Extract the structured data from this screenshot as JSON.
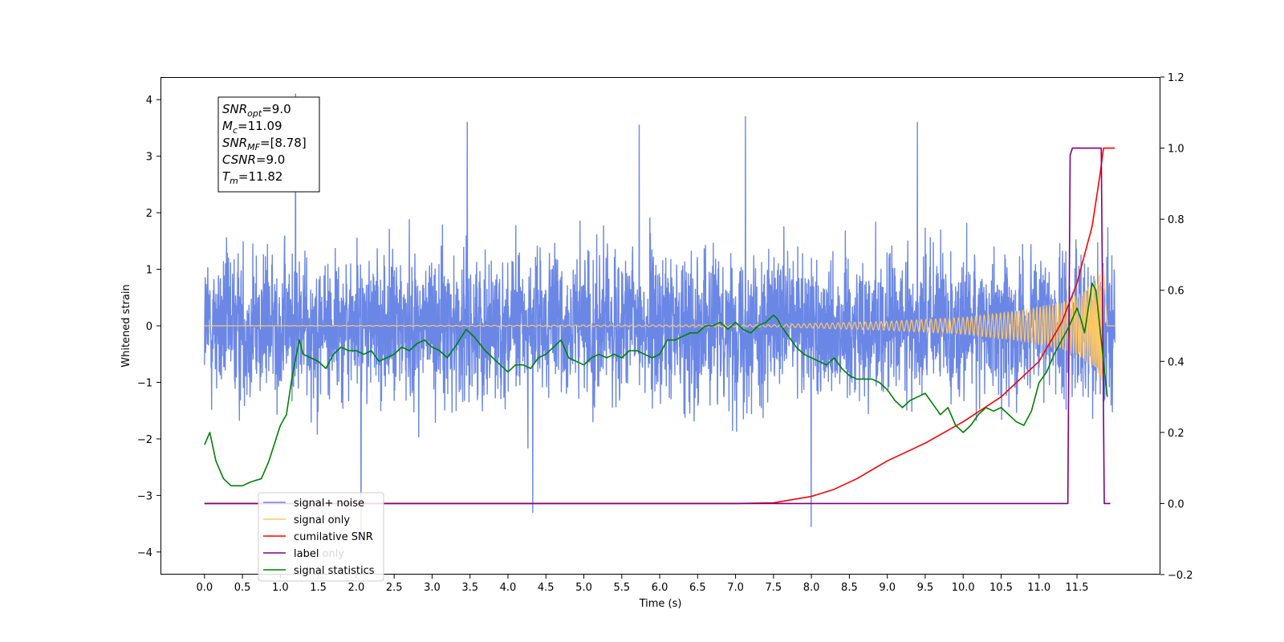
{
  "chart_data": {
    "type": "line",
    "xlabel": "Time (s)",
    "ylabel": "Whitened strain",
    "xlim": [
      -0.58,
      12.6
    ],
    "ylim": [
      -4.4,
      4.4
    ],
    "y2lim": [
      -0.2,
      1.2
    ],
    "x_ticks": [
      0.0,
      0.5,
      1.0,
      1.5,
      2.0,
      2.5,
      3.0,
      3.5,
      4.0,
      4.5,
      5.0,
      5.5,
      6.0,
      6.5,
      7.0,
      7.5,
      8.0,
      8.5,
      9.0,
      9.5,
      10.0,
      10.5,
      11.0,
      11.5
    ],
    "x_tick_labels": [
      "0.0",
      "0.5",
      "1.0",
      "1.5",
      "2.0",
      "2.5",
      "3.0",
      "3.5",
      "4.0",
      "4.5",
      "5.0",
      "5.5",
      "6.0",
      "6.5",
      "7.0",
      "7.5",
      "8.0",
      "8.5",
      "9.0",
      "9.5",
      "10.0",
      "10.5",
      "11.0",
      "11.5"
    ],
    "y_ticks": [
      -4,
      -3,
      -2,
      -1,
      0,
      1,
      2,
      3,
      4
    ],
    "y_tick_labels": [
      "−4",
      "−3",
      "−2",
      "−1",
      "0",
      "1",
      "2",
      "3",
      "4"
    ],
    "y2_ticks": [
      -0.2,
      0.0,
      0.2,
      0.4,
      0.6,
      0.8,
      1.0,
      1.2
    ],
    "y2_tick_labels": [
      "−0.2",
      "0.0",
      "0.2",
      "0.4",
      "0.6",
      "0.8",
      "1.0",
      "1.2"
    ],
    "grid": false,
    "legend_position": "lower-left",
    "info_box": [
      {
        "base": "SNR",
        "sub": "opt",
        "rest": "=9.0"
      },
      {
        "base": "M",
        "sub": "c",
        "rest": "=11.09"
      },
      {
        "base": "SNR",
        "sub": "MF",
        "rest": "=[8.78]"
      },
      {
        "base": "CSNR",
        "sub": "",
        "rest": "=9.0"
      },
      {
        "base": "T",
        "sub": "m",
        "rest": "=11.82"
      }
    ],
    "legend": [
      {
        "label": "signal+ noise",
        "color": "#6b87e6"
      },
      {
        "label": "signal only",
        "color": "#ffc766"
      },
      {
        "label": "cumilative SNR",
        "color": "#ff0000"
      },
      {
        "label": "label",
        "color": "#800080"
      },
      {
        "label": "signal statistics",
        "color": "#008000"
      }
    ],
    "legend_ghost_text": "label only",
    "series": [
      {
        "name": "signal+ noise",
        "axis": "left",
        "color": "#6b87e6",
        "kind": "noise",
        "x_range": [
          0.0,
          12.0
        ],
        "envelope": 1.9,
        "extreme_peaks": [
          4.1,
          3.7,
          3.6,
          3.6,
          3.55,
          -3.85,
          -3.55,
          -3.3
        ]
      },
      {
        "name": "signal only",
        "axis": "left",
        "color": "#ffc766",
        "kind": "chirp",
        "amplitude": {
          "x": [
            0.0,
            7.5,
            9.0,
            10.0,
            10.8,
            11.3,
            11.6,
            11.8,
            11.85
          ],
          "y": [
            0.0,
            0.02,
            0.08,
            0.15,
            0.28,
            0.42,
            0.6,
            0.9,
            1.2
          ]
        }
      },
      {
        "name": "cumilative SNR",
        "axis": "right",
        "color": "#ff0000",
        "x": [
          0.0,
          7.0,
          7.5,
          8.0,
          8.3,
          8.6,
          9.0,
          9.5,
          10.0,
          10.5,
          11.0,
          11.3,
          11.5,
          11.7,
          11.8,
          11.85,
          11.9,
          12.0
        ],
        "y": [
          0.0,
          0.0,
          0.002,
          0.02,
          0.04,
          0.07,
          0.12,
          0.17,
          0.23,
          0.3,
          0.4,
          0.51,
          0.62,
          0.78,
          0.92,
          1.0,
          1.0,
          1.0
        ]
      },
      {
        "name": "label",
        "axis": "right",
        "color": "#800080",
        "x": [
          0.0,
          11.38,
          11.41,
          11.44,
          11.82,
          11.86,
          11.94
        ],
        "y": [
          0.0,
          0.0,
          0.98,
          1.0,
          1.0,
          0.0,
          0.0
        ]
      },
      {
        "name": "signal statistics",
        "axis": "right",
        "color": "#008000",
        "x": [
          0.0,
          0.07,
          0.15,
          0.25,
          0.35,
          0.5,
          0.6,
          0.75,
          0.85,
          1.0,
          1.08,
          1.15,
          1.25,
          1.3,
          1.4,
          1.5,
          1.6,
          1.7,
          1.8,
          1.9,
          2.0,
          2.1,
          2.2,
          2.3,
          2.4,
          2.5,
          2.6,
          2.7,
          2.8,
          2.9,
          3.0,
          3.1,
          3.2,
          3.3,
          3.45,
          3.55,
          3.7,
          3.85,
          4.0,
          4.1,
          4.2,
          4.3,
          4.4,
          4.5,
          4.6,
          4.7,
          4.8,
          4.9,
          5.0,
          5.1,
          5.2,
          5.3,
          5.4,
          5.5,
          5.6,
          5.7,
          5.8,
          5.9,
          6.0,
          6.1,
          6.2,
          6.3,
          6.4,
          6.5,
          6.6,
          6.7,
          6.8,
          6.9,
          7.0,
          7.1,
          7.2,
          7.3,
          7.4,
          7.5,
          7.55,
          7.6,
          7.7,
          7.8,
          7.9,
          8.0,
          8.1,
          8.2,
          8.3,
          8.4,
          8.5,
          8.6,
          8.7,
          8.8,
          8.9,
          9.0,
          9.1,
          9.2,
          9.3,
          9.4,
          9.5,
          9.6,
          9.7,
          9.8,
          9.9,
          10.0,
          10.1,
          10.2,
          10.3,
          10.4,
          10.5,
          10.6,
          10.7,
          10.8,
          10.9,
          11.0,
          11.1,
          11.2,
          11.3,
          11.4,
          11.5,
          11.55,
          11.6,
          11.65,
          11.7,
          11.75,
          11.8,
          11.9
        ],
        "y": [
          0.165,
          0.2,
          0.12,
          0.07,
          0.05,
          0.05,
          0.06,
          0.07,
          0.12,
          0.22,
          0.25,
          0.35,
          0.46,
          0.42,
          0.41,
          0.4,
          0.38,
          0.42,
          0.44,
          0.43,
          0.43,
          0.42,
          0.43,
          0.4,
          0.41,
          0.42,
          0.44,
          0.43,
          0.45,
          0.46,
          0.44,
          0.43,
          0.41,
          0.44,
          0.49,
          0.47,
          0.43,
          0.4,
          0.37,
          0.39,
          0.39,
          0.38,
          0.41,
          0.42,
          0.44,
          0.46,
          0.41,
          0.4,
          0.39,
          0.41,
          0.42,
          0.41,
          0.42,
          0.41,
          0.43,
          0.43,
          0.42,
          0.41,
          0.42,
          0.46,
          0.46,
          0.47,
          0.48,
          0.48,
          0.5,
          0.5,
          0.51,
          0.49,
          0.51,
          0.49,
          0.48,
          0.5,
          0.51,
          0.53,
          0.52,
          0.5,
          0.47,
          0.44,
          0.42,
          0.41,
          0.4,
          0.39,
          0.41,
          0.38,
          0.36,
          0.35,
          0.35,
          0.35,
          0.34,
          0.32,
          0.29,
          0.27,
          0.29,
          0.3,
          0.31,
          0.28,
          0.25,
          0.27,
          0.22,
          0.2,
          0.22,
          0.25,
          0.27,
          0.26,
          0.27,
          0.25,
          0.23,
          0.22,
          0.26,
          0.34,
          0.37,
          0.42,
          0.46,
          0.5,
          0.55,
          0.52,
          0.48,
          0.55,
          0.62,
          0.6,
          0.5,
          0.3
        ]
      }
    ]
  }
}
